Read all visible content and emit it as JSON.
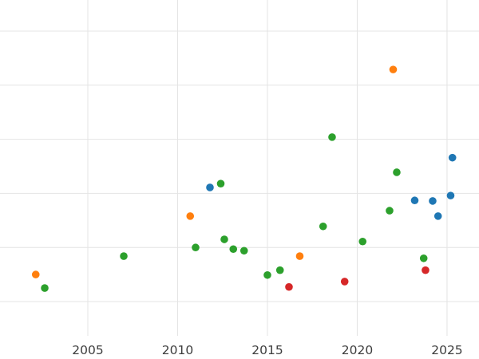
{
  "chart_data": {
    "type": "scatter",
    "title": "",
    "xlabel": "",
    "ylabel": "",
    "grid": true,
    "legend": "none",
    "background": "#ffffff",
    "gridline_color": "#e4e4e4",
    "tick_label_color": "#3d3d3d",
    "marker_radius": 4.8,
    "xlim": [
      2000.11,
      2026.78
    ],
    "ylim": [
      -0.634,
      5.575
    ],
    "x_ticks": [
      {
        "value": 2005,
        "label": "2005"
      },
      {
        "value": 2010,
        "label": "2010"
      },
      {
        "value": 2015,
        "label": "2015"
      },
      {
        "value": 2020,
        "label": "2020"
      },
      {
        "value": 2025,
        "label": "2025"
      }
    ],
    "y_gridlines": [
      0,
      1,
      2,
      3,
      4,
      5
    ],
    "series": [
      {
        "name": "orange",
        "color": "#ff7f0e",
        "points": [
          [
            2002.1,
            0.5
          ],
          [
            2010.7,
            1.58
          ],
          [
            2016.8,
            0.84
          ],
          [
            2022.0,
            4.29
          ]
        ]
      },
      {
        "name": "green",
        "color": "#2ca02c",
        "points": [
          [
            2002.6,
            0.25
          ],
          [
            2007.0,
            0.84
          ],
          [
            2011.0,
            1.0
          ],
          [
            2012.4,
            2.18
          ],
          [
            2012.6,
            1.15
          ],
          [
            2013.1,
            0.97
          ],
          [
            2013.7,
            0.94
          ],
          [
            2015.0,
            0.49
          ],
          [
            2015.7,
            0.58
          ],
          [
            2018.1,
            1.39
          ],
          [
            2018.6,
            3.04
          ],
          [
            2020.3,
            1.11
          ],
          [
            2021.8,
            1.68
          ],
          [
            2022.2,
            2.39
          ],
          [
            2023.7,
            0.8
          ]
        ]
      },
      {
        "name": "blue",
        "color": "#1f77b4",
        "points": [
          [
            2011.8,
            2.11
          ],
          [
            2023.2,
            1.87
          ],
          [
            2024.2,
            1.86
          ],
          [
            2024.5,
            1.58
          ],
          [
            2025.2,
            1.96
          ],
          [
            2025.3,
            2.66
          ]
        ]
      },
      {
        "name": "red",
        "color": "#d62728",
        "points": [
          [
            2016.2,
            0.27
          ],
          [
            2019.3,
            0.37
          ],
          [
            2023.8,
            0.58
          ]
        ]
      }
    ]
  }
}
